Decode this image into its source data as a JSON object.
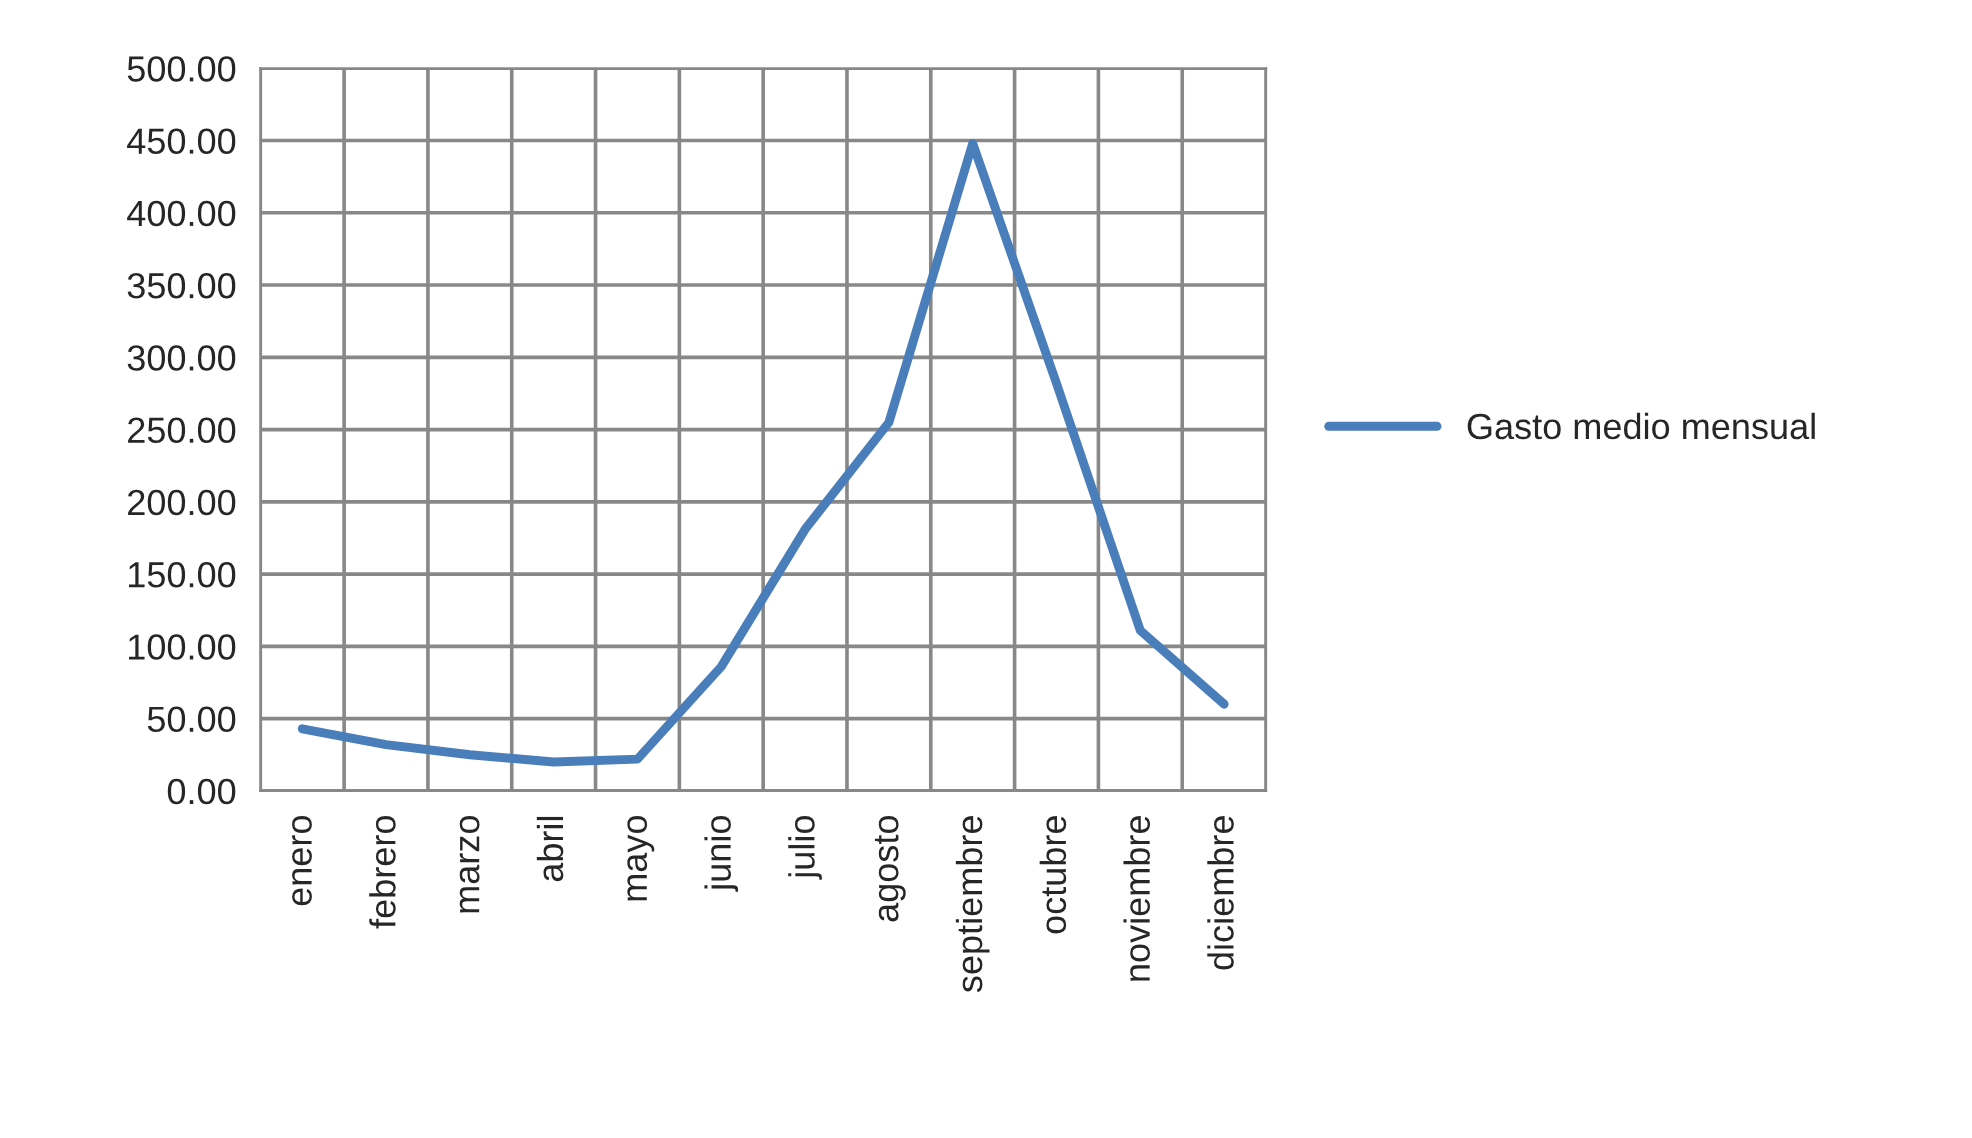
{
  "chart_data": {
    "type": "line",
    "categories": [
      "enero",
      "febrero",
      "marzo",
      "abril",
      "mayo",
      "junio",
      "julio",
      "agosto",
      "septiembre",
      "octubre",
      "noviembre",
      "diciembre"
    ],
    "series": [
      {
        "name": "Gasto medio mensual",
        "color": "#4a7ebb",
        "values": [
          43,
          32,
          25,
          20,
          22,
          86,
          181,
          255,
          448,
          282,
          111,
          60
        ]
      }
    ],
    "ylim": [
      0,
      500
    ],
    "yticks": [
      {
        "value": 0,
        "label": "0.00"
      },
      {
        "value": 50,
        "label": "50.00"
      },
      {
        "value": 100,
        "label": "100.00"
      },
      {
        "value": 150,
        "label": "150.00"
      },
      {
        "value": 200,
        "label": "200.00"
      },
      {
        "value": 250,
        "label": "250.00"
      },
      {
        "value": 300,
        "label": "300.00"
      },
      {
        "value": 350,
        "label": "350.00"
      },
      {
        "value": 400,
        "label": "400.00"
      },
      {
        "value": 450,
        "label": "450.00"
      },
      {
        "value": 500,
        "label": "500.00"
      }
    ],
    "grid": true,
    "legend": "right",
    "marker": "none",
    "line_style": "solid"
  }
}
